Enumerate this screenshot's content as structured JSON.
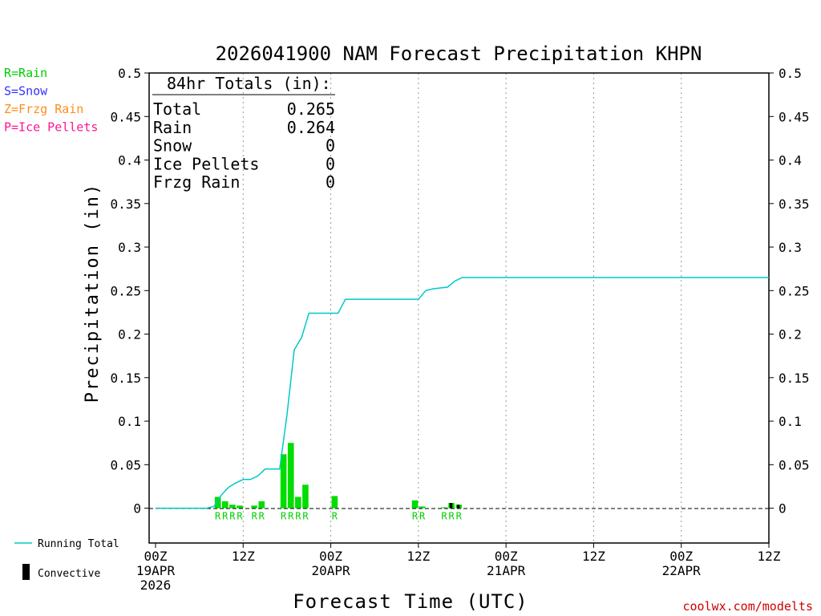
{
  "chart_data": {
    "type": "bar",
    "title": "2026041900 NAM Forecast Precipitation KHPN",
    "ylabel": "Precipitation (in)",
    "xlabel": "Forecast Time (UTC)",
    "ylim": [
      -0.04,
      0.5
    ],
    "xlim_hours": [
      0,
      84
    ],
    "yticks": [
      0,
      0.05,
      0.1,
      0.15,
      0.2,
      0.25,
      0.3,
      0.35,
      0.4,
      0.45,
      0.5
    ],
    "ytick_labels": [
      "0",
      "0.05",
      "0.1",
      "0.15",
      "0.2",
      "0.25",
      "0.3",
      "0.35",
      "0.4",
      "0.45",
      "0.5"
    ],
    "xticks": [
      {
        "hour": 0,
        "lines": [
          "00Z",
          "19APR",
          "2026"
        ]
      },
      {
        "hour": 12,
        "lines": [
          "12Z"
        ]
      },
      {
        "hour": 24,
        "lines": [
          "00Z",
          "20APR"
        ]
      },
      {
        "hour": 36,
        "lines": [
          "12Z"
        ]
      },
      {
        "hour": 48,
        "lines": [
          "00Z",
          "21APR"
        ]
      },
      {
        "hour": 60,
        "lines": [
          "12Z"
        ]
      },
      {
        "hour": 72,
        "lines": [
          "00Z",
          "22APR"
        ]
      },
      {
        "hour": 84,
        "lines": [
          "12Z"
        ]
      }
    ],
    "legend_types": [
      {
        "label": "R=Rain",
        "color": "#00cc00"
      },
      {
        "label": "S=Snow",
        "color": "#3333ff"
      },
      {
        "label": "Z=Frzg Rain",
        "color": "#ff8c1a"
      },
      {
        "label": "P=Ice Pellets",
        "color": "#ff1493"
      }
    ],
    "totals": {
      "heading": "84hr Totals (in):",
      "rows": [
        {
          "label": "Total",
          "value": "0.265"
        },
        {
          "label": "Rain",
          "value": "0.264"
        },
        {
          "label": "Snow",
          "value": "0"
        },
        {
          "label": "Ice Pellets",
          "value": "0"
        },
        {
          "label": "Frzg Rain",
          "value": "0"
        }
      ]
    },
    "series": [
      {
        "name": "Running Total",
        "kind": "line",
        "color": "#00c8c8",
        "x": [
          0,
          1,
          2,
          3,
          4,
          5,
          6,
          7,
          8,
          9,
          10,
          11,
          12,
          13,
          14,
          15,
          16,
          17,
          18,
          19,
          20,
          21,
          22,
          23,
          24,
          25,
          26,
          27,
          28,
          29,
          30,
          31,
          32,
          33,
          34,
          35,
          36,
          37,
          38,
          39,
          40,
          41,
          42,
          43,
          84
        ],
        "y": [
          0,
          0,
          0,
          0,
          0,
          0,
          0,
          0,
          0.002,
          0.015,
          0.024,
          0.029,
          0.033,
          0.033,
          0.037,
          0.045,
          0.045,
          0.045,
          0.107,
          0.182,
          0.196,
          0.224,
          0.224,
          0.224,
          0.224,
          0.224,
          0.24,
          0.24,
          0.24,
          0.24,
          0.24,
          0.24,
          0.24,
          0.24,
          0.24,
          0.24,
          0.24,
          0.25,
          0.252,
          0.253,
          0.254,
          0.261,
          0.265,
          0.265,
          0.265
        ]
      },
      {
        "name": "Precipitation",
        "kind": "bar",
        "color": "#00dd00",
        "x": [
          9,
          10,
          11,
          12,
          14,
          15,
          18,
          19,
          20,
          21,
          25,
          36,
          37,
          40,
          41,
          42
        ],
        "y": [
          0.013,
          0.008,
          0.004,
          0.003,
          0.003,
          0.008,
          0.062,
          0.075,
          0.013,
          0.027,
          0.014,
          0.009,
          0.002,
          0.001,
          0.006,
          0.004
        ],
        "ptype": [
          "R",
          "R",
          "R",
          "R",
          "R",
          "R",
          "R",
          "R",
          "R",
          "R",
          "R",
          "R",
          "R",
          "R",
          "R",
          "R"
        ],
        "convective": [
          0,
          0,
          0,
          0,
          0,
          0,
          0,
          0,
          0,
          0,
          0,
          0,
          0,
          0,
          0.006,
          0.004
        ]
      }
    ],
    "legend_bottom": [
      {
        "label": "Running Total"
      },
      {
        "label": "Convective"
      }
    ],
    "credit": "coolwx.com/modelts"
  }
}
